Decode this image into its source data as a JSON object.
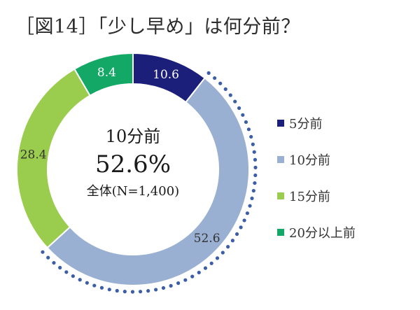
{
  "title": "［図14］「少し早め」は何分前？",
  "center": {
    "title": "10分前",
    "value": "52.6%",
    "note": "全体(N=1,400)"
  },
  "chart_data": {
    "type": "pie",
    "title": "［図14］「少し早め」は何分前？",
    "categories": [
      "5分前",
      "10分前",
      "15分前",
      "20分以上前"
    ],
    "values": [
      10.6,
      52.6,
      28.4,
      8.4
    ],
    "colors": [
      "#1c1f7a",
      "#9ab0d2",
      "#9acd4d",
      "#14a866"
    ],
    "label_colors": [
      "#ffffff",
      "#333333",
      "#333333",
      "#ffffff"
    ],
    "highlight_color": "#3b5ea7",
    "legend": "right"
  }
}
